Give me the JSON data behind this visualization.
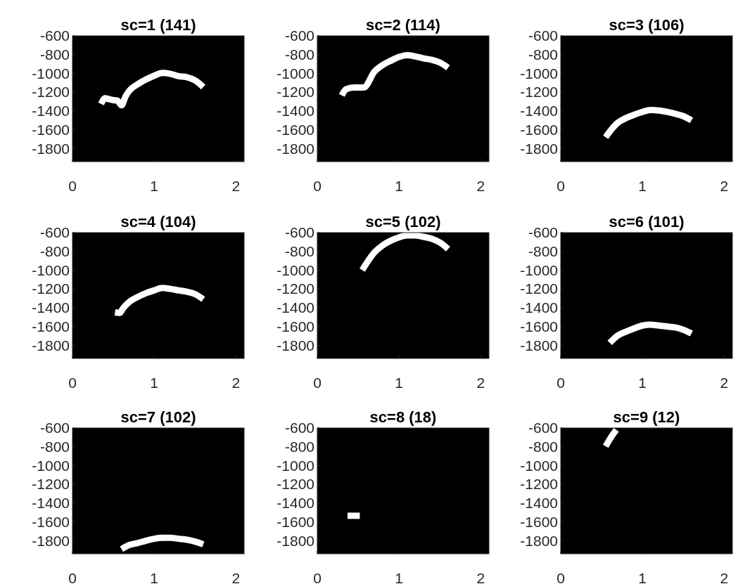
{
  "chart_data": [
    {
      "type": "line",
      "title": "sc=1 (141)",
      "xlim": [
        0,
        2.1
      ],
      "xticks": [
        0,
        1,
        2
      ],
      "ylim": [
        -1940,
        -600
      ],
      "yticks": [
        -600,
        -800,
        -1000,
        -1200,
        -1400,
        -1600,
        -1800
      ],
      "series": [
        {
          "color": "#ffffff",
          "x": [
            0.35,
            0.4,
            0.45,
            0.5,
            0.55,
            0.6,
            0.65,
            0.7,
            0.8,
            0.9,
            1.0,
            1.1,
            1.2,
            1.3,
            1.4,
            1.5,
            1.6
          ],
          "values": [
            -1325,
            -1265,
            -1275,
            -1285,
            -1290,
            -1340,
            -1245,
            -1180,
            -1115,
            -1065,
            -1025,
            -995,
            -1005,
            -1030,
            -1040,
            -1075,
            -1145
          ]
        }
      ]
    },
    {
      "type": "line",
      "title": "sc=2 (114)",
      "xlim": [
        0,
        2.1
      ],
      "xticks": [
        0,
        1,
        2
      ],
      "ylim": [
        -1940,
        -600
      ],
      "yticks": [
        -600,
        -800,
        -1000,
        -1200,
        -1400,
        -1600,
        -1800
      ],
      "series": [
        {
          "color": "#ffffff",
          "x": [
            0.3,
            0.35,
            0.45,
            0.57,
            0.7,
            0.8,
            0.9,
            1.0,
            1.1,
            1.2,
            1.3,
            1.4,
            1.5,
            1.6
          ],
          "values": [
            -1235,
            -1170,
            -1150,
            -1150,
            -980,
            -910,
            -865,
            -825,
            -805,
            -820,
            -840,
            -855,
            -885,
            -940
          ]
        }
      ]
    },
    {
      "type": "line",
      "title": "sc=3 (106)",
      "xlim": [
        0,
        2.1
      ],
      "xticks": [
        0,
        1,
        2
      ],
      "ylim": [
        -1940,
        -600
      ],
      "yticks": [
        -600,
        -800,
        -1000,
        -1200,
        -1400,
        -1600,
        -1800
      ],
      "series": [
        {
          "color": "#ffffff",
          "x": [
            0.55,
            0.6,
            0.7,
            0.8,
            0.9,
            1.0,
            1.1,
            1.2,
            1.3,
            1.4,
            1.5,
            1.6
          ],
          "values": [
            -1680,
            -1620,
            -1525,
            -1475,
            -1440,
            -1410,
            -1390,
            -1395,
            -1410,
            -1430,
            -1455,
            -1500
          ]
        }
      ]
    },
    {
      "type": "line",
      "title": "sc=4 (104)",
      "xlim": [
        0,
        2.1
      ],
      "xticks": [
        0,
        1,
        2
      ],
      "ylim": [
        -1940,
        -600
      ],
      "yticks": [
        -600,
        -800,
        -1000,
        -1200,
        -1400,
        -1600,
        -1800
      ],
      "series": [
        {
          "color": "#ffffff",
          "x": [
            0.52,
            0.58,
            0.62,
            0.7,
            0.8,
            0.9,
            1.0,
            1.1,
            1.2,
            1.3,
            1.4,
            1.5,
            1.6
          ],
          "values": [
            -1450,
            -1455,
            -1405,
            -1335,
            -1285,
            -1245,
            -1215,
            -1190,
            -1200,
            -1215,
            -1230,
            -1255,
            -1310
          ]
        }
      ]
    },
    {
      "type": "line",
      "title": "sc=5 (102)",
      "xlim": [
        0,
        2.1
      ],
      "xticks": [
        0,
        1,
        2
      ],
      "ylim": [
        -1940,
        -600
      ],
      "yticks": [
        -600,
        -800,
        -1000,
        -1200,
        -1400,
        -1600,
        -1800
      ],
      "series": [
        {
          "color": "#ffffff",
          "x": [
            0.55,
            0.6,
            0.7,
            0.8,
            0.9,
            1.0,
            1.1,
            1.2,
            1.3,
            1.4,
            1.5,
            1.6
          ],
          "values": [
            -1000,
            -930,
            -810,
            -735,
            -685,
            -650,
            -630,
            -630,
            -645,
            -665,
            -705,
            -775
          ]
        }
      ]
    },
    {
      "type": "line",
      "title": "sc=6 (101)",
      "xlim": [
        0,
        2.1
      ],
      "xticks": [
        0,
        1,
        2
      ],
      "ylim": [
        -1940,
        -600
      ],
      "yticks": [
        -600,
        -800,
        -1000,
        -1200,
        -1400,
        -1600,
        -1800
      ],
      "series": [
        {
          "color": "#ffffff",
          "x": [
            0.6,
            0.7,
            0.8,
            0.9,
            1.0,
            1.1,
            1.2,
            1.3,
            1.4,
            1.5,
            1.6
          ],
          "values": [
            -1775,
            -1695,
            -1655,
            -1620,
            -1590,
            -1580,
            -1590,
            -1600,
            -1610,
            -1635,
            -1675
          ]
        }
      ]
    },
    {
      "type": "line",
      "title": "sc=7 (102)",
      "xlim": [
        0,
        2.1
      ],
      "xticks": [
        0,
        1,
        2
      ],
      "ylim": [
        -1940,
        -600
      ],
      "yticks": [
        -600,
        -800,
        -1000,
        -1200,
        -1400,
        -1600,
        -1800
      ],
      "series": [
        {
          "color": "#ffffff",
          "x": [
            0.6,
            0.7,
            0.8,
            0.9,
            1.0,
            1.1,
            1.2,
            1.3,
            1.4,
            1.5,
            1.6
          ],
          "values": [
            -1890,
            -1845,
            -1825,
            -1800,
            -1780,
            -1770,
            -1770,
            -1780,
            -1790,
            -1810,
            -1840
          ]
        }
      ]
    },
    {
      "type": "line",
      "title": "sc=8 (18)",
      "xlim": [
        0,
        2.1
      ],
      "xticks": [
        0,
        1,
        2
      ],
      "ylim": [
        -1940,
        -600
      ],
      "yticks": [
        -600,
        -800,
        -1000,
        -1200,
        -1400,
        -1600,
        -1800
      ],
      "series": [
        {
          "color": "#ffffff",
          "x": [
            0.37,
            0.45,
            0.52
          ],
          "values": [
            -1535,
            -1535,
            -1535
          ]
        }
      ]
    },
    {
      "type": "line",
      "title": "sc=9 (12)",
      "xlim": [
        0,
        2.1
      ],
      "xticks": [
        0,
        1,
        2
      ],
      "ylim": [
        -1940,
        -600
      ],
      "yticks": [
        -600,
        -800,
        -1000,
        -1200,
        -1400,
        -1600,
        -1800
      ],
      "series": [
        {
          "color": "#ffffff",
          "x": [
            0.55,
            0.6,
            0.68
          ],
          "values": [
            -795,
            -720,
            -620
          ]
        }
      ]
    }
  ]
}
